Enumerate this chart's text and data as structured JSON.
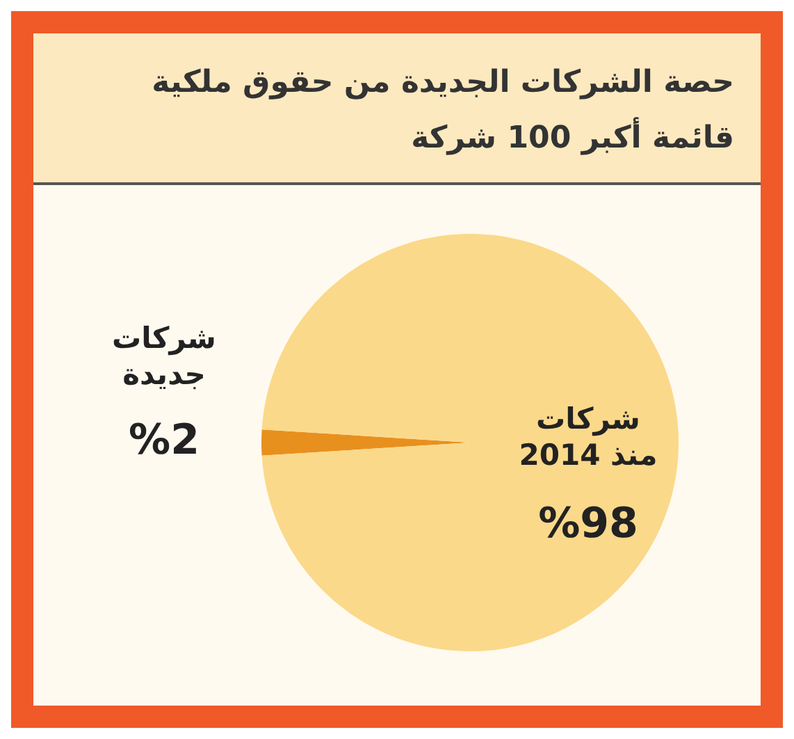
{
  "chart_data": {
    "type": "pie",
    "title": "حصة الشركات الجديدة من حقوق ملكية قائمة أكبر 100 شركة",
    "categories": [
      "شركات جديدة",
      "شركات منذ 2014"
    ],
    "values": [
      2,
      98
    ],
    "colors": [
      "#e8901e",
      "#fbd98a"
    ],
    "value_labels": [
      "%2",
      "%98"
    ]
  }
}
